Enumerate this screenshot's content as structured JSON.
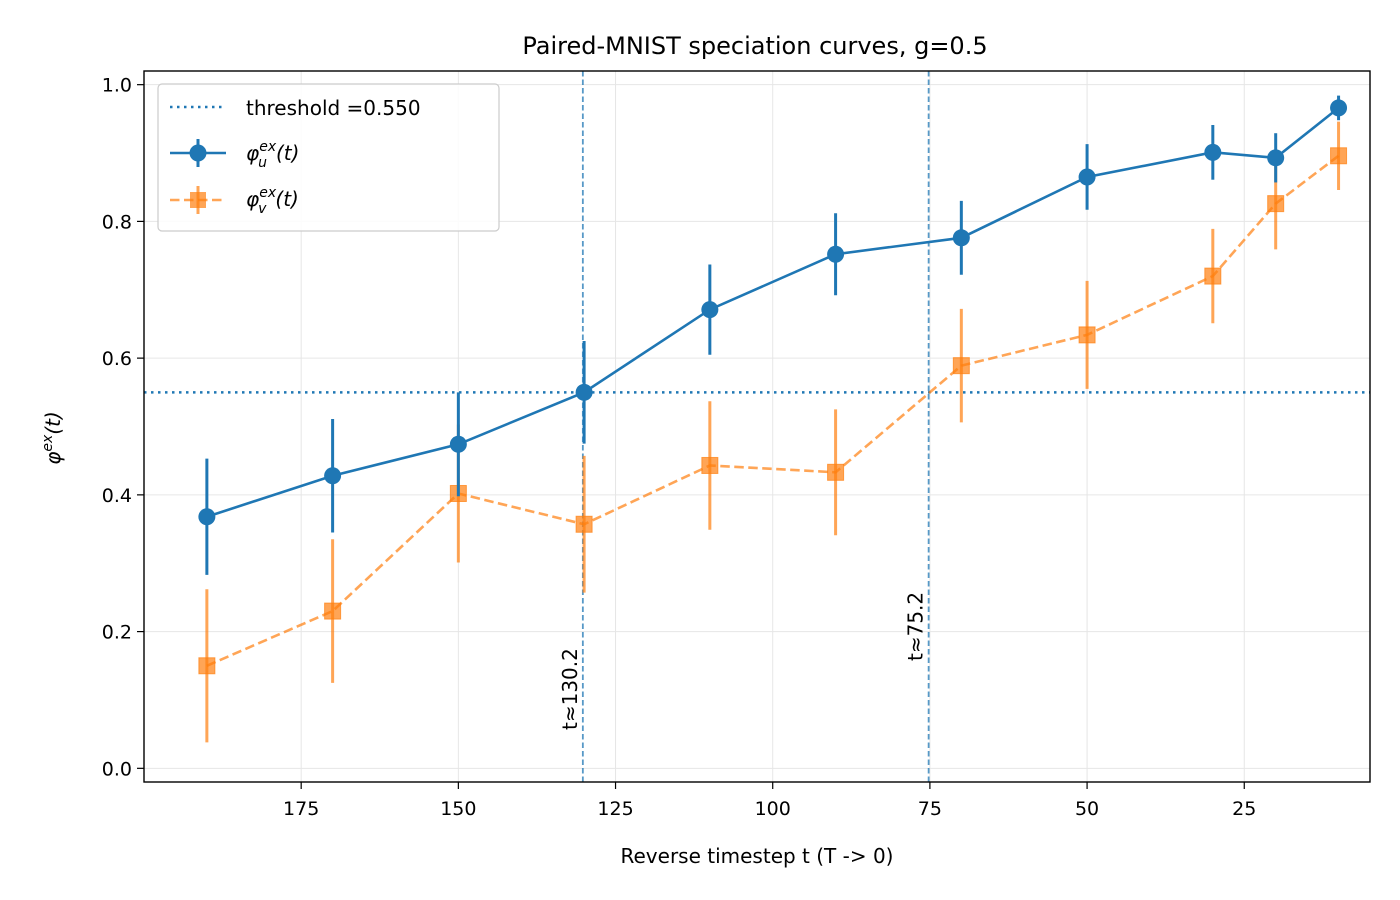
{
  "chart_data": {
    "type": "line",
    "title": "Paired-MNIST speciation curves, g=0.5",
    "xlabel": "Reverse timestep t (T -> 0)",
    "ylabel": "φex(t)",
    "ylabel_base": "φ",
    "ylabel_sup": "ex",
    "ylabel_arg": "(t)",
    "xlim": [
      200,
      5
    ],
    "ylim": [
      -0.02,
      1.02
    ],
    "x_reversed": true,
    "grid": true,
    "legend_position": "top-left",
    "x_ticks": [
      175,
      150,
      125,
      100,
      75,
      50,
      25
    ],
    "y_ticks": [
      0.0,
      0.2,
      0.4,
      0.6,
      0.8,
      1.0
    ],
    "y_tick_labels": [
      "0.0",
      "0.2",
      "0.4",
      "0.6",
      "0.8",
      "1.0"
    ],
    "x": [
      190,
      170,
      150,
      130,
      110,
      90,
      70,
      50,
      30,
      20,
      10
    ],
    "series": [
      {
        "name": "φuex(t)",
        "base": "φ",
        "sub": "u",
        "sup": "ex",
        "arg": "(t)",
        "color": "#1f77b4",
        "marker": "circle",
        "linestyle": "solid",
        "values": [
          0.368,
          0.428,
          0.474,
          0.55,
          0.671,
          0.752,
          0.776,
          0.865,
          0.901,
          0.893,
          0.966
        ],
        "errors": [
          0.085,
          0.083,
          0.076,
          0.075,
          0.066,
          0.06,
          0.054,
          0.048,
          0.04,
          0.036,
          0.018
        ]
      },
      {
        "name": "φvex(t)",
        "base": "φ",
        "sub": "v",
        "sup": "ex",
        "arg": "(t)",
        "color": "#ff7f0e",
        "marker": "square",
        "linestyle": "dashed",
        "values": [
          0.15,
          0.23,
          0.402,
          0.357,
          0.443,
          0.433,
          0.589,
          0.634,
          0.72,
          0.826,
          0.896
        ],
        "errors": [
          0.112,
          0.105,
          0.101,
          0.1,
          0.094,
          0.092,
          0.083,
          0.079,
          0.069,
          0.067,
          0.05
        ]
      }
    ],
    "threshold": {
      "label": "threshold =0.550",
      "value": 0.55,
      "color": "#1f77b4"
    },
    "vlines": [
      {
        "x": 130.2,
        "label": "t≈130.2"
      },
      {
        "x": 75.2,
        "label": "t≈75.2"
      }
    ]
  }
}
